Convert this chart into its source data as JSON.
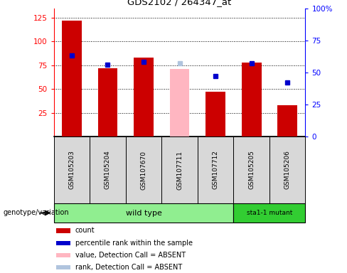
{
  "title": "GDS2102 / 264347_at",
  "samples": [
    "GSM105203",
    "GSM105204",
    "GSM107670",
    "GSM107711",
    "GSM107712",
    "GSM105205",
    "GSM105206"
  ],
  "bar_data": [
    {
      "sample": "GSM105203",
      "count": 122,
      "percentile": 63,
      "absent": false
    },
    {
      "sample": "GSM105204",
      "count": 72,
      "percentile": 56,
      "absent": false
    },
    {
      "sample": "GSM107670",
      "count": 83,
      "percentile": 58,
      "absent": false
    },
    {
      "sample": "GSM107711",
      "count": 71,
      "percentile": 57,
      "absent": true
    },
    {
      "sample": "GSM107712",
      "count": 47,
      "percentile": 47,
      "absent": false
    },
    {
      "sample": "GSM105205",
      "count": 78,
      "percentile": 57,
      "absent": false
    },
    {
      "sample": "GSM105206",
      "count": 33,
      "percentile": 42,
      "absent": false
    }
  ],
  "ylim_left": [
    0,
    135
  ],
  "ylim_right": [
    0,
    100
  ],
  "yticks_left": [
    25,
    50,
    75,
    100,
    125
  ],
  "yticks_right": [
    0,
    25,
    50,
    75,
    100
  ],
  "ytick_labels_right": [
    "0",
    "25",
    "50",
    "75",
    "100%"
  ],
  "bar_color_normal": "#cc0000",
  "bar_color_absent": "#FFB6C1",
  "percentile_color_normal": "#0000cc",
  "percentile_color_absent": "#b0c4de",
  "bar_width": 0.55,
  "genotype_label": "genotype/variation",
  "group_wild_color": "#90EE90",
  "group_mut_color": "#32CD32",
  "legend_items": [
    {
      "label": "count",
      "color": "#cc0000"
    },
    {
      "label": "percentile rank within the sample",
      "color": "#0000cc"
    },
    {
      "label": "value, Detection Call = ABSENT",
      "color": "#FFB6C1"
    },
    {
      "label": "rank, Detection Call = ABSENT",
      "color": "#b0c4de"
    }
  ]
}
